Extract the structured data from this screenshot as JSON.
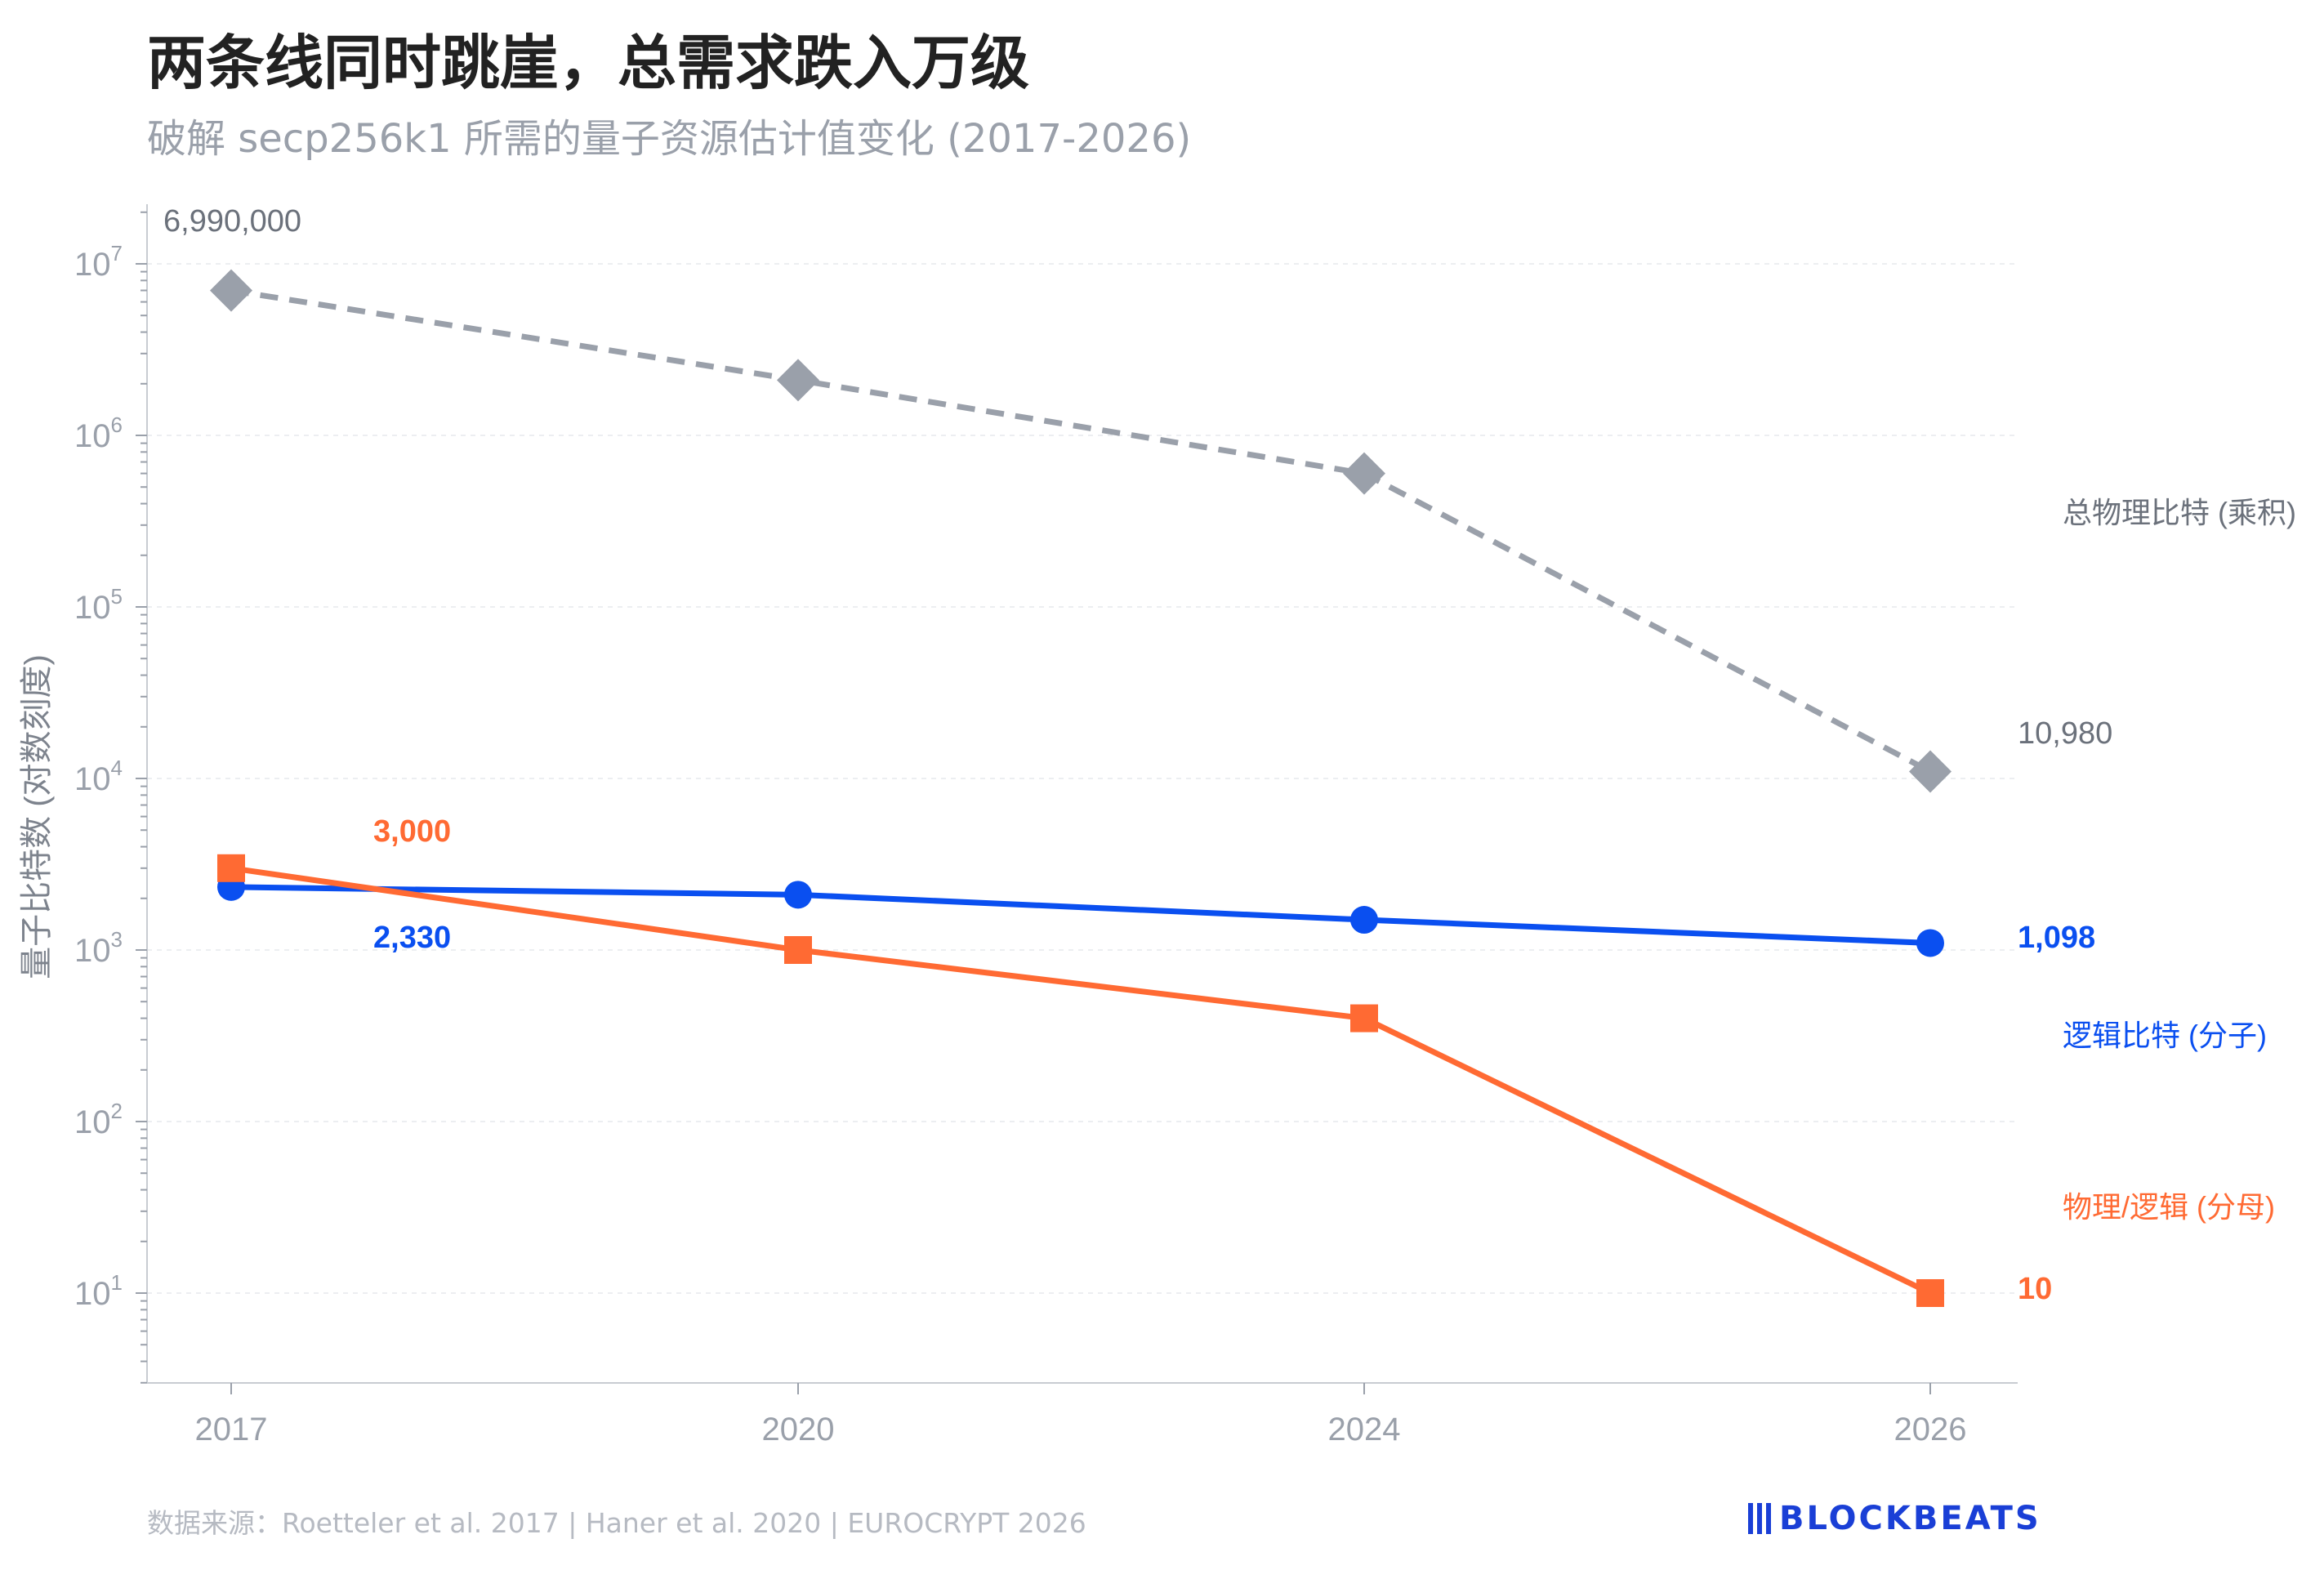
{
  "title": "两条线同时跳崖，总需求跌入万级",
  "subtitle": "破解 secp256k1 所需的量子资源估计值变化 (2017-2026)",
  "footer": "数据来源：Roetteler et al. 2017 | Haner et al. 2020 | EUROCRYPT 2026",
  "logo": {
    "text": "BLOCKBEATS",
    "color": "#1a3fd6",
    "icon": "barcode-logo-icon"
  },
  "chart_data": {
    "type": "line",
    "x": [
      "2017",
      "2020",
      "2024",
      "2026"
    ],
    "ylabel": "量子比特数 (对数刻度)",
    "xlabel": "",
    "yscale": "log",
    "ylim": [
      2,
      20000000
    ],
    "yticks": [
      {
        "value": 10,
        "base": "10",
        "exp": "1"
      },
      {
        "value": 100,
        "base": "10",
        "exp": "2"
      },
      {
        "value": 1000,
        "base": "10",
        "exp": "3"
      },
      {
        "value": 10000,
        "base": "10",
        "exp": "4"
      },
      {
        "value": 100000,
        "base": "10",
        "exp": "5"
      },
      {
        "value": 1000000,
        "base": "10",
        "exp": "6"
      },
      {
        "value": 10000000,
        "base": "10",
        "exp": "7"
      }
    ],
    "grid": true,
    "series": [
      {
        "name": "总物理比特 (乘积)",
        "values": [
          6990000,
          2100000,
          600000,
          10980
        ],
        "color": "#9aa0aa",
        "style": "dashed",
        "marker": "diamond",
        "labels": {
          "first": "6,990,000",
          "last": "10,980"
        }
      },
      {
        "name": "逻辑比特 (分子)",
        "values": [
          2330,
          2100,
          1500,
          1098
        ],
        "color": "#0a4ff0",
        "style": "solid",
        "marker": "circle",
        "labels": {
          "first": "2,330",
          "last": "1,098"
        }
      },
      {
        "name": "物理/逻辑 (分母)",
        "values": [
          3000,
          1000,
          400,
          10
        ],
        "color": "#ff6a33",
        "style": "solid",
        "marker": "square",
        "labels": {
          "first": "3,000",
          "last": "10"
        }
      }
    ]
  }
}
